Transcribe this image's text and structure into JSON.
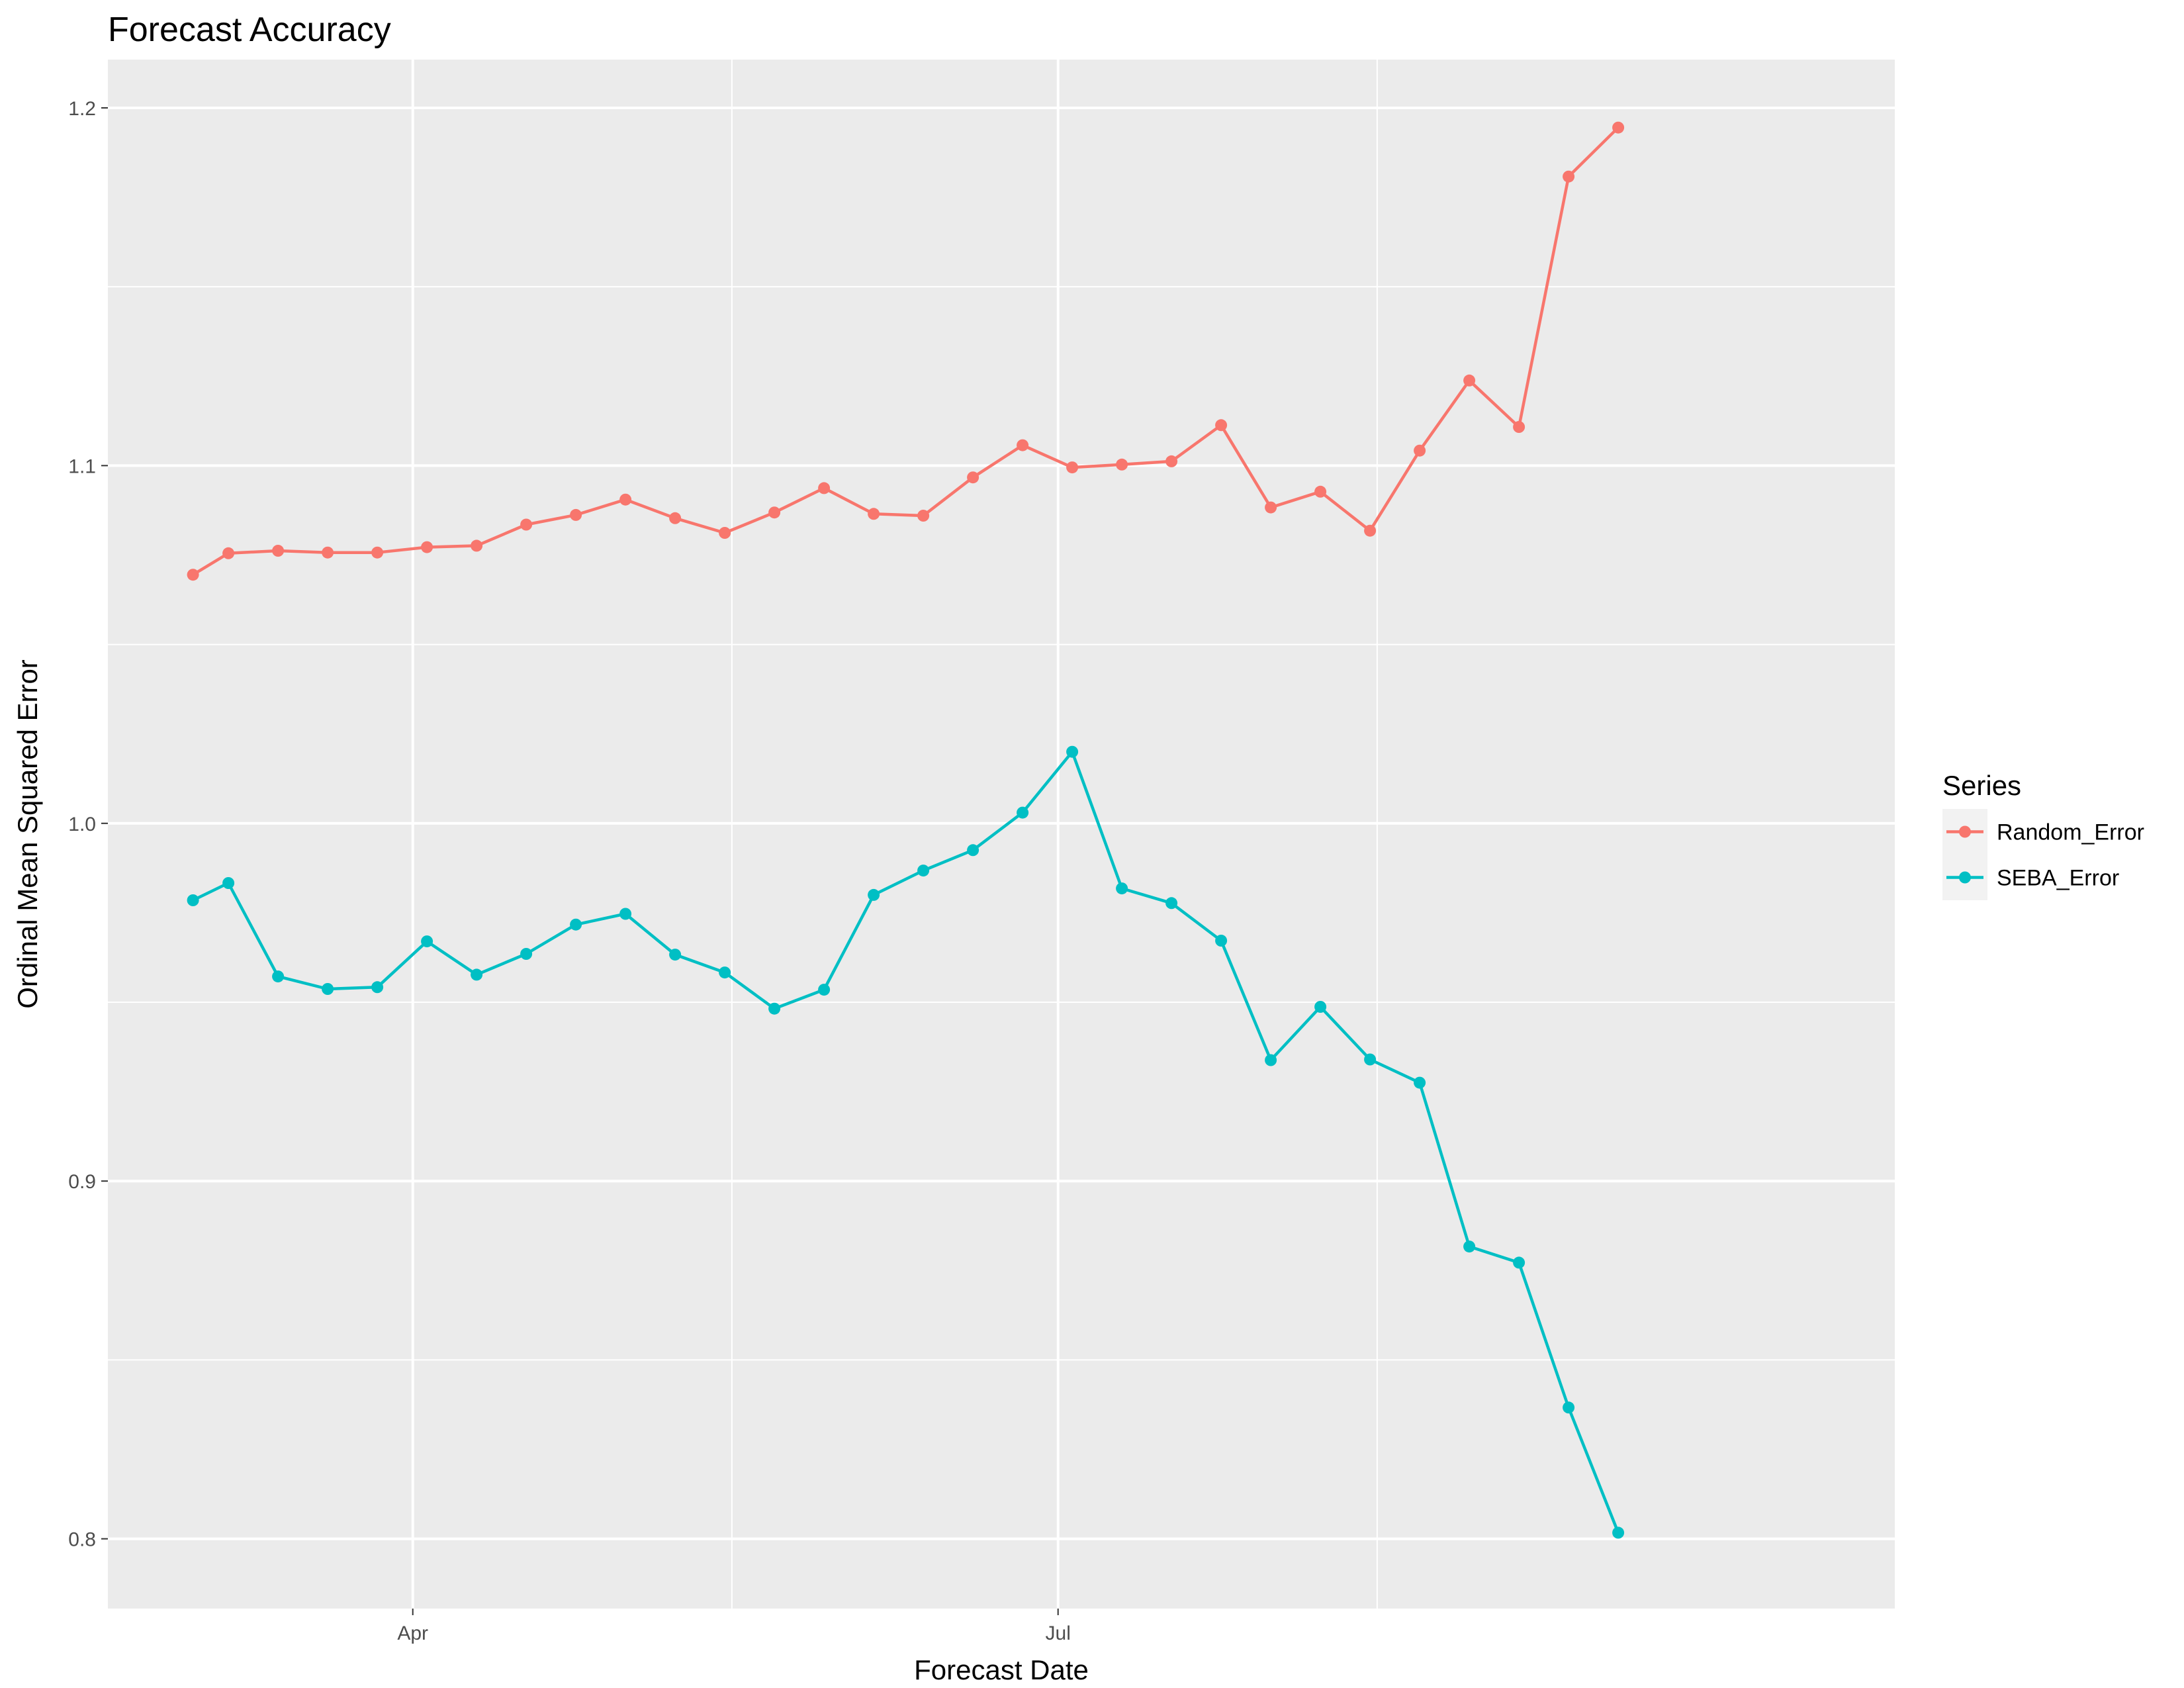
{
  "chart_data": {
    "type": "line",
    "title": "Forecast Accuracy",
    "xlabel": "Forecast Date",
    "ylabel": "Ordinal Mean Squared Error",
    "x_tick_labels": [
      {
        "date": "2017-04-01",
        "label": "Apr"
      },
      {
        "date": "2017-07-01",
        "label": "Jul"
      }
    ],
    "x_minor_breaks": [
      "2017-05-16",
      "2017-08-15"
    ],
    "xlim": [
      "2017-02-17",
      "2017-10-27"
    ],
    "ylim": [
      0.7805,
      1.2135
    ],
    "y_ticks": [
      0.8,
      0.9,
      1.0,
      1.1,
      1.2
    ],
    "y_tick_labels": [
      "0.8",
      "0.9",
      "1.0",
      "1.1",
      "1.2"
    ],
    "y_minor_breaks": [
      0.85,
      0.95,
      1.05,
      1.15
    ],
    "grid": true,
    "legend": {
      "title": "Series",
      "position": "right"
    },
    "x": [
      "2017-03-01",
      "2017-03-06",
      "2017-03-13",
      "2017-03-20",
      "2017-03-27",
      "2017-04-03",
      "2017-04-10",
      "2017-04-17",
      "2017-04-24",
      "2017-05-01",
      "2017-05-08",
      "2017-05-15",
      "2017-05-22",
      "2017-05-29",
      "2017-06-05",
      "2017-06-12",
      "2017-06-19",
      "2017-06-26",
      "2017-07-03",
      "2017-07-10",
      "2017-07-17",
      "2017-07-24",
      "2017-07-31",
      "2017-08-07",
      "2017-08-14",
      "2017-08-21",
      "2017-08-28",
      "2017-09-04",
      "2017-09-11",
      "2017-09-18"
    ],
    "series": [
      {
        "name": "Random_Error",
        "color": "#F8766D",
        "values": [
          1.0695,
          1.0755,
          1.0762,
          1.0757,
          1.0757,
          1.0772,
          1.0776,
          1.0835,
          1.0862,
          1.0905,
          1.0853,
          1.0812,
          1.0869,
          1.0937,
          1.0865,
          1.086,
          1.0967,
          1.1057,
          1.0995,
          1.1003,
          1.1012,
          1.1113,
          1.0883,
          1.0927,
          1.0818,
          1.1042,
          1.1238,
          1.1108,
          1.1808,
          1.1945
        ]
      },
      {
        "name": "SEBA_Error",
        "color": "#00BFC4",
        "values": [
          0.9785,
          0.9833,
          0.9572,
          0.9537,
          0.9542,
          0.967,
          0.9577,
          0.9635,
          0.9717,
          0.9747,
          0.9633,
          0.9583,
          0.9482,
          0.9535,
          0.98,
          0.9868,
          0.9925,
          1.003,
          1.02,
          0.9818,
          0.9777,
          0.9672,
          0.9338,
          0.9487,
          0.934,
          0.9275,
          0.8817,
          0.8772,
          0.8367,
          0.8017
        ]
      }
    ]
  }
}
